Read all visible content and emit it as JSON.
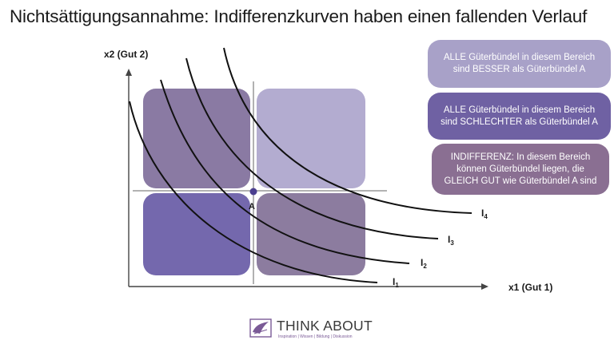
{
  "title": "Nichtsättigungsannahme: Indifferenzkurven haben einen fallenden Verlauf",
  "axes": {
    "y_label": "x2 (Gut 2)",
    "x_label": "x1 (Gut 1)"
  },
  "point": {
    "label": "A",
    "color": "#4b3f8f"
  },
  "curves": [
    {
      "id": "I1",
      "label_base": "I",
      "label_sub": "1"
    },
    {
      "id": "I2",
      "label_base": "I",
      "label_sub": "2"
    },
    {
      "id": "I3",
      "label_base": "I",
      "label_sub": "3"
    },
    {
      "id": "I4",
      "label_base": "I",
      "label_sub": "4"
    }
  ],
  "regions": {
    "top_left_color": "#8a7aa3",
    "top_right_color": "#b3acd0",
    "bottom_left_color": "#7468ad",
    "bottom_right_color": "#8c7c9f"
  },
  "legend": [
    {
      "text": "ALLE Güterbündel in diesem Bereich sind BESSER als Güterbündel A",
      "color": "#a8a1c8"
    },
    {
      "text": "ALLE Güterbündel in diesem Bereich sind SCHLECHTER als Güterbündel A",
      "color": "#6f61a3"
    },
    {
      "text": "INDIFFERENZ: In diesem Bereich können Güterbündel liegen, die GLEICH GUT wie Güterbündel A sind",
      "color": "#8a6f92"
    }
  ],
  "logo": {
    "name": "THINK ABOUT",
    "tagline": "Inspiration | Wissen | Bildung | Diskussion",
    "icon": "bird-logo-icon"
  }
}
